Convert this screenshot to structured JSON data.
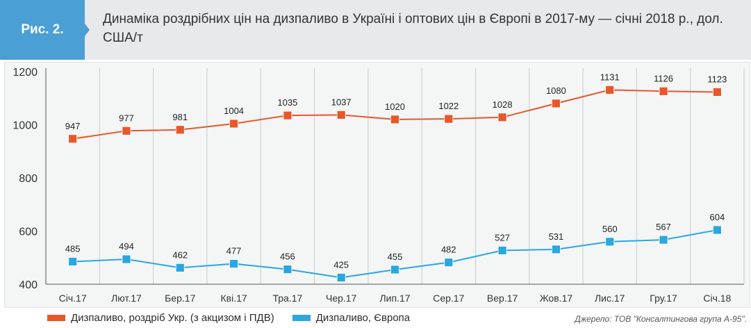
{
  "figure": {
    "label": "Рис. 2.",
    "title": "Динаміка роздрібних цін на дизпаливо в Україні і оптових цін в Європі в 2017-му — січні 2018 р., дол. США/т",
    "badge_color": "#4a9fd5"
  },
  "source": "Джерело: ТОВ \"Консалтингова група А-95\".",
  "chart_data": {
    "type": "line",
    "categories": [
      "Січ.17",
      "Лют.17",
      "Бер.17",
      "Кві.17",
      "Тра.17",
      "Чер.17",
      "Лип.17",
      "Сер.17",
      "Вер.17",
      "Жов.17",
      "Лис.17",
      "Гру.17",
      "Січ.18"
    ],
    "series": [
      {
        "name": "Дизпаливо, роздріб Укр. (з акцизом і ПДВ)",
        "color": "#e8572a",
        "marker": "square",
        "values": [
          947,
          977,
          981,
          1004,
          1035,
          1037,
          1020,
          1022,
          1028,
          1080,
          1131,
          1126,
          1123
        ]
      },
      {
        "name": "Дизпаливо, Європа",
        "color": "#2aa7e0",
        "marker": "square",
        "values": [
          485,
          494,
          462,
          477,
          456,
          425,
          455,
          482,
          527,
          531,
          560,
          567,
          604
        ]
      }
    ],
    "yticks": [
      400,
      600,
      800,
      1000,
      1200
    ],
    "ylim": [
      400,
      1200
    ],
    "grid": "vertical",
    "legend": "bottom-left",
    "data_labels": true
  }
}
